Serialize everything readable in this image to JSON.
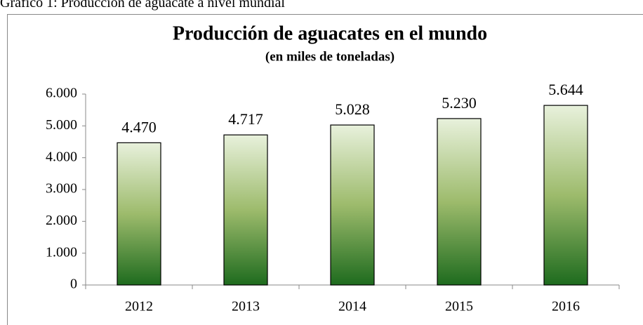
{
  "caption": "Gráfico 1: Producción de aguacate a nivel mundial",
  "chart_data": {
    "type": "bar",
    "title": "Producción de aguacates en el mundo",
    "subtitle": "(en miles de toneladas)",
    "categories": [
      "2012",
      "2013",
      "2014",
      "2015",
      "2016"
    ],
    "values": [
      4470,
      4717,
      5028,
      5230,
      5644
    ],
    "value_labels": [
      "4.470",
      "4.717",
      "5.028",
      "5.230",
      "5.644"
    ],
    "color": "#1e6b1e",
    "ylim": [
      0,
      6000
    ],
    "yticks": [
      0,
      {
        "value": 1000,
        "label": "1.000"
      },
      {
        "value": 2000,
        "label": "2.000"
      },
      {
        "value": 3000,
        "label": "3.000"
      },
      {
        "value": 4000,
        "label": "4.000"
      },
      {
        "value": 5000,
        "label": "5.000"
      },
      {
        "value": 6000,
        "label": "6.000"
      }
    ],
    "grid": false
  }
}
